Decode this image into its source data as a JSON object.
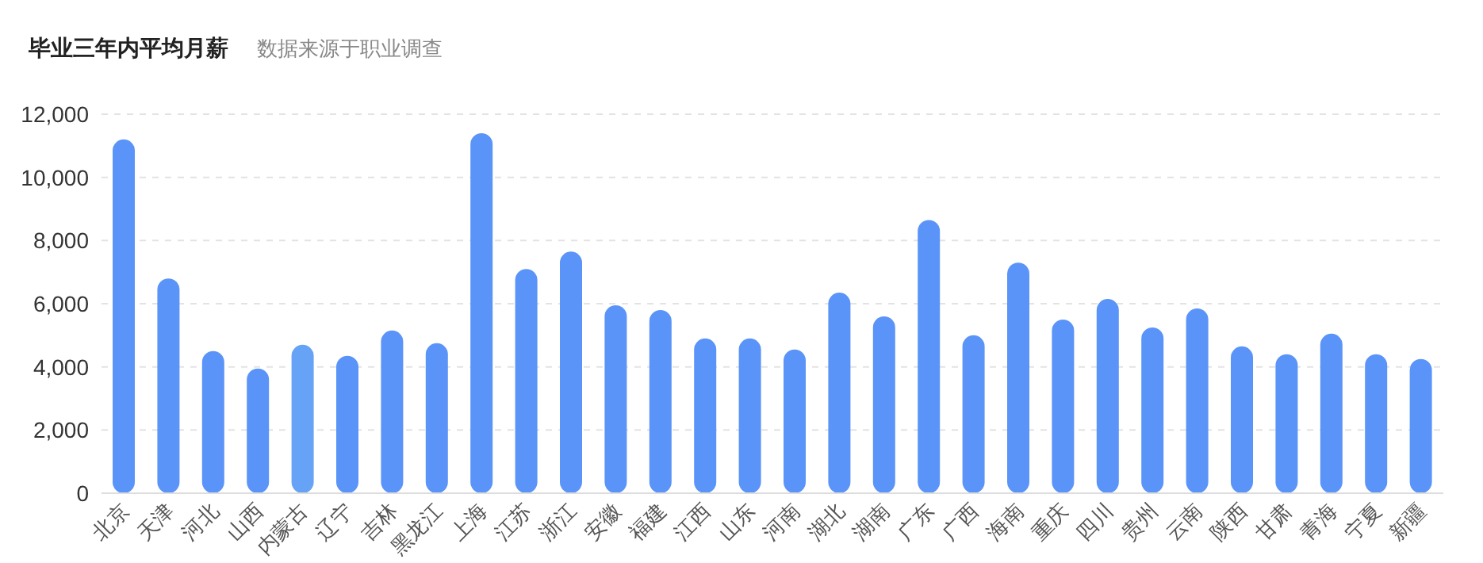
{
  "chart_data": {
    "type": "bar",
    "title": "毕业三年内平均月薪",
    "subtitle": "数据来源于职业调查",
    "categories": [
      "北京",
      "天津",
      "河北",
      "山西",
      "内蒙古",
      "辽宁",
      "吉林",
      "黑龙江",
      "上海",
      "江苏",
      "浙江",
      "安徽",
      "福建",
      "江西",
      "山东",
      "河南",
      "湖北",
      "湖南",
      "广东",
      "广西",
      "海南",
      "重庆",
      "四川",
      "贵州",
      "云南",
      "陕西",
      "甘肃",
      "青海",
      "宁夏",
      "新疆"
    ],
    "values": [
      11200,
      6800,
      4500,
      3950,
      4700,
      4350,
      5150,
      4750,
      11400,
      7100,
      7650,
      5950,
      5800,
      4900,
      4900,
      4550,
      6350,
      5600,
      8650,
      5000,
      7300,
      5500,
      6150,
      5250,
      5850,
      4650,
      4400,
      5050,
      4400,
      4250
    ],
    "colors": [
      "#5b94f8",
      "#5b94f8",
      "#5b94f8",
      "#5b94f8",
      "#66a3f6",
      "#5b94f8",
      "#5b94f8",
      "#5b94f8",
      "#5b94f8",
      "#5b94f8",
      "#5b94f8",
      "#5b94f8",
      "#5b94f8",
      "#5b94f8",
      "#5b94f8",
      "#5b94f8",
      "#5b94f8",
      "#5b94f8",
      "#5b94f8",
      "#5b94f8",
      "#5b94f8",
      "#5b94f8",
      "#5b94f8",
      "#5b94f8",
      "#5b94f8",
      "#5b94f8",
      "#5b94f8",
      "#5b94f8",
      "#5b94f8",
      "#5b94f8"
    ],
    "ylim": [
      0,
      12000
    ],
    "yticks": [
      0,
      {
        "value": 2000,
        "label": "2,000"
      },
      {
        "value": 4000,
        "label": "4,000"
      },
      {
        "value": 6000,
        "label": "6,000"
      },
      {
        "value": 8000,
        "label": "8,000"
      },
      {
        "value": 10000,
        "label": "10,000"
      },
      {
        "value": 12000,
        "label": "12,000"
      }
    ],
    "grid": "y"
  }
}
